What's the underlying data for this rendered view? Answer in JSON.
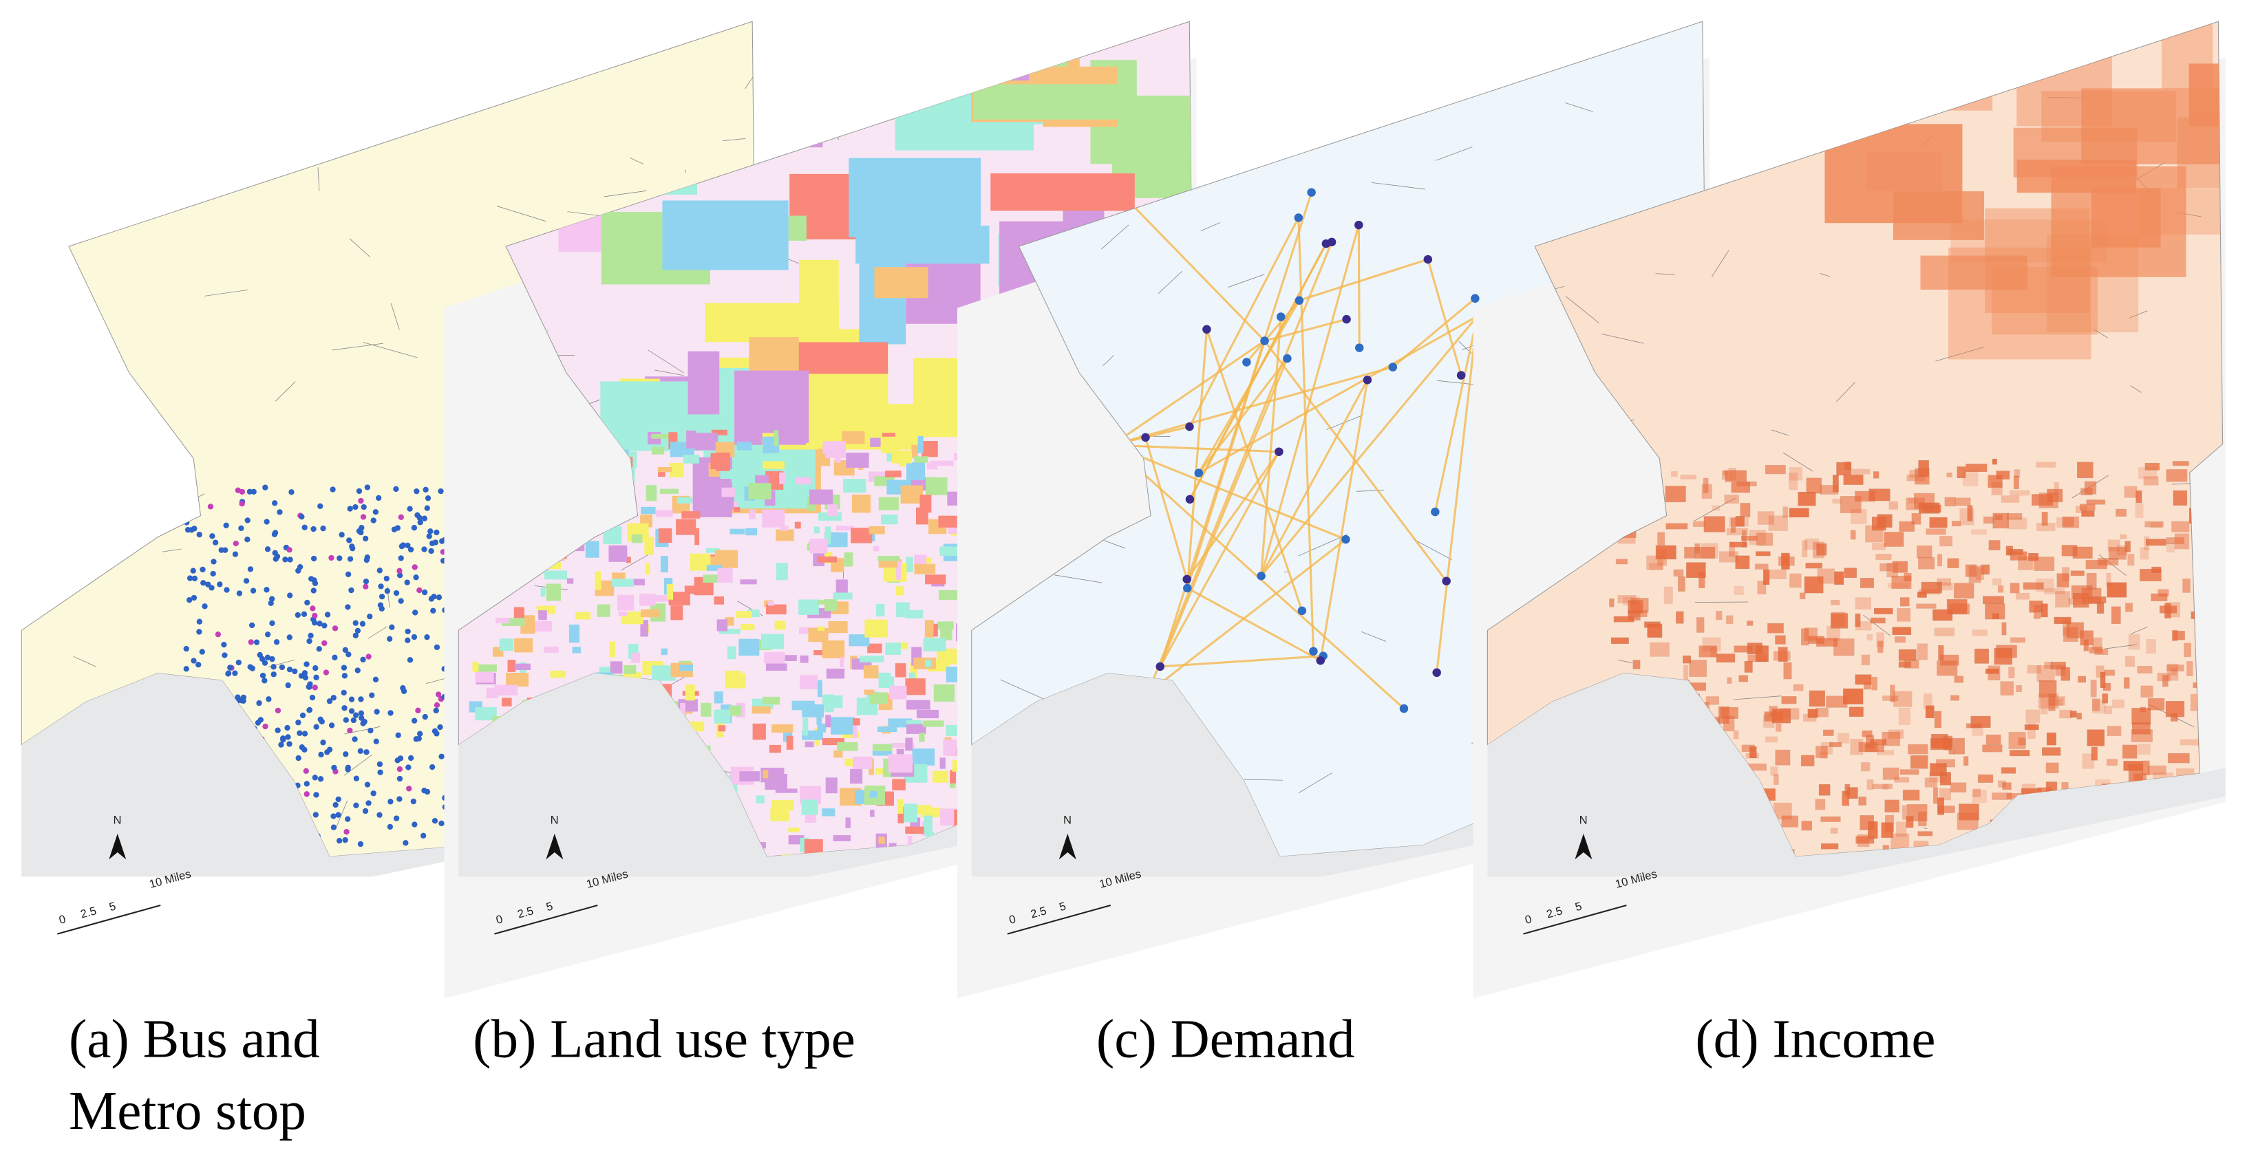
{
  "panels": [
    {
      "caption": [
        "(a) Bus and",
        "Metro stop"
      ],
      "north": "N",
      "scale_labels": [
        "0",
        "2.5",
        "5",
        "10 Miles"
      ]
    },
    {
      "caption": [
        "(b) Land use type"
      ],
      "north": "N",
      "scale_labels": [
        "0",
        "2.5",
        "5",
        "10 Miles"
      ]
    },
    {
      "caption": [
        "(c) Demand"
      ],
      "north": "N",
      "scale_labels": [
        "0",
        "2.5",
        "5",
        "10 Miles"
      ]
    },
    {
      "caption": [
        "(d) Income"
      ],
      "north": "N",
      "scale_labels": [
        "0",
        "2.5",
        "5",
        "10 Miles"
      ]
    }
  ]
}
